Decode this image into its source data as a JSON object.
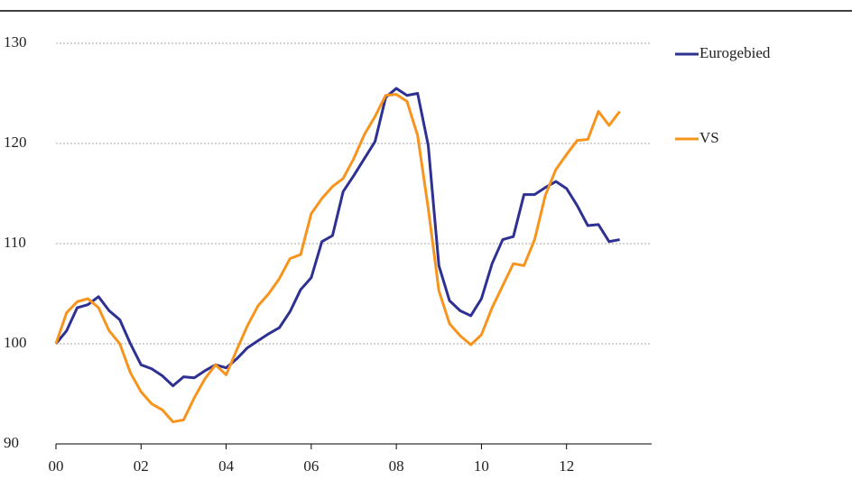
{
  "chart_data": {
    "type": "line",
    "x": [
      2000,
      2000.25,
      2000.5,
      2000.75,
      2001,
      2001.25,
      2001.5,
      2001.75,
      2002,
      2002.25,
      2002.5,
      2002.75,
      2003,
      2003.25,
      2003.5,
      2003.75,
      2004,
      2004.25,
      2004.5,
      2004.75,
      2005,
      2005.25,
      2005.5,
      2005.75,
      2006,
      2006.25,
      2006.5,
      2006.75,
      2007,
      2007.25,
      2007.5,
      2007.75,
      2008,
      2008.25,
      2008.5,
      2008.75,
      2009,
      2009.25,
      2009.5,
      2009.75,
      2010,
      2010.25,
      2010.5,
      2010.75,
      2011,
      2011.25,
      2011.5,
      2011.75,
      2012,
      2012.25,
      2012.5,
      2012.75,
      2013,
      2013.25
    ],
    "series": [
      {
        "name": "Eurogebied",
        "color": "#2e3192",
        "values": [
          100,
          101.3,
          103.6,
          103.9,
          104.7,
          103.3,
          102.4,
          100,
          97.9,
          97.5,
          96.8,
          95.8,
          96.7,
          96.6,
          97.3,
          97.9,
          97.6,
          98.5,
          99.6,
          100.3,
          101.0,
          101.6,
          103.2,
          105.4,
          106.6,
          110.2,
          110.8,
          115.2,
          116.8,
          118.5,
          120.2,
          124.6,
          125.5,
          124.8,
          125.0,
          119.8,
          107.8,
          104.3,
          103.3,
          102.8,
          104.5,
          108.0,
          110.4,
          110.7,
          114.9,
          114.9,
          115.6,
          116.2,
          115.5,
          113.8,
          111.8,
          111.9,
          110.2,
          110.4
        ]
      },
      {
        "name": "VS",
        "color": "#f7941d",
        "values": [
          100,
          103.1,
          104.2,
          104.5,
          103.6,
          101.3,
          100.0,
          97.1,
          95.2,
          94.0,
          93.4,
          92.2,
          92.4,
          94.6,
          96.5,
          97.9,
          96.9,
          99.4,
          101.8,
          103.8,
          105.0,
          106.5,
          108.5,
          108.9,
          113.0,
          114.5,
          115.7,
          116.5,
          118.5,
          120.9,
          122.7,
          124.8,
          124.9,
          124.2,
          120.8,
          113.5,
          105.3,
          102.0,
          100.8,
          99.9,
          100.9,
          103.6,
          105.8,
          108.0,
          107.8,
          110.4,
          114.8,
          117.4,
          118.9,
          120.3,
          120.4,
          123.2,
          121.8,
          123.2
        ]
      }
    ],
    "xlim": [
      2000,
      2014
    ],
    "xticks": [
      {
        "value": 2000,
        "label": "00"
      },
      {
        "value": 2002,
        "label": "02"
      },
      {
        "value": 2004,
        "label": "04"
      },
      {
        "value": 2006,
        "label": "06"
      },
      {
        "value": 2008,
        "label": "08"
      },
      {
        "value": 2010,
        "label": "10"
      },
      {
        "value": 2012,
        "label": "12"
      }
    ],
    "ylim": [
      90,
      130
    ],
    "yticks": [
      90,
      100,
      110,
      120,
      130
    ],
    "grid": true
  }
}
